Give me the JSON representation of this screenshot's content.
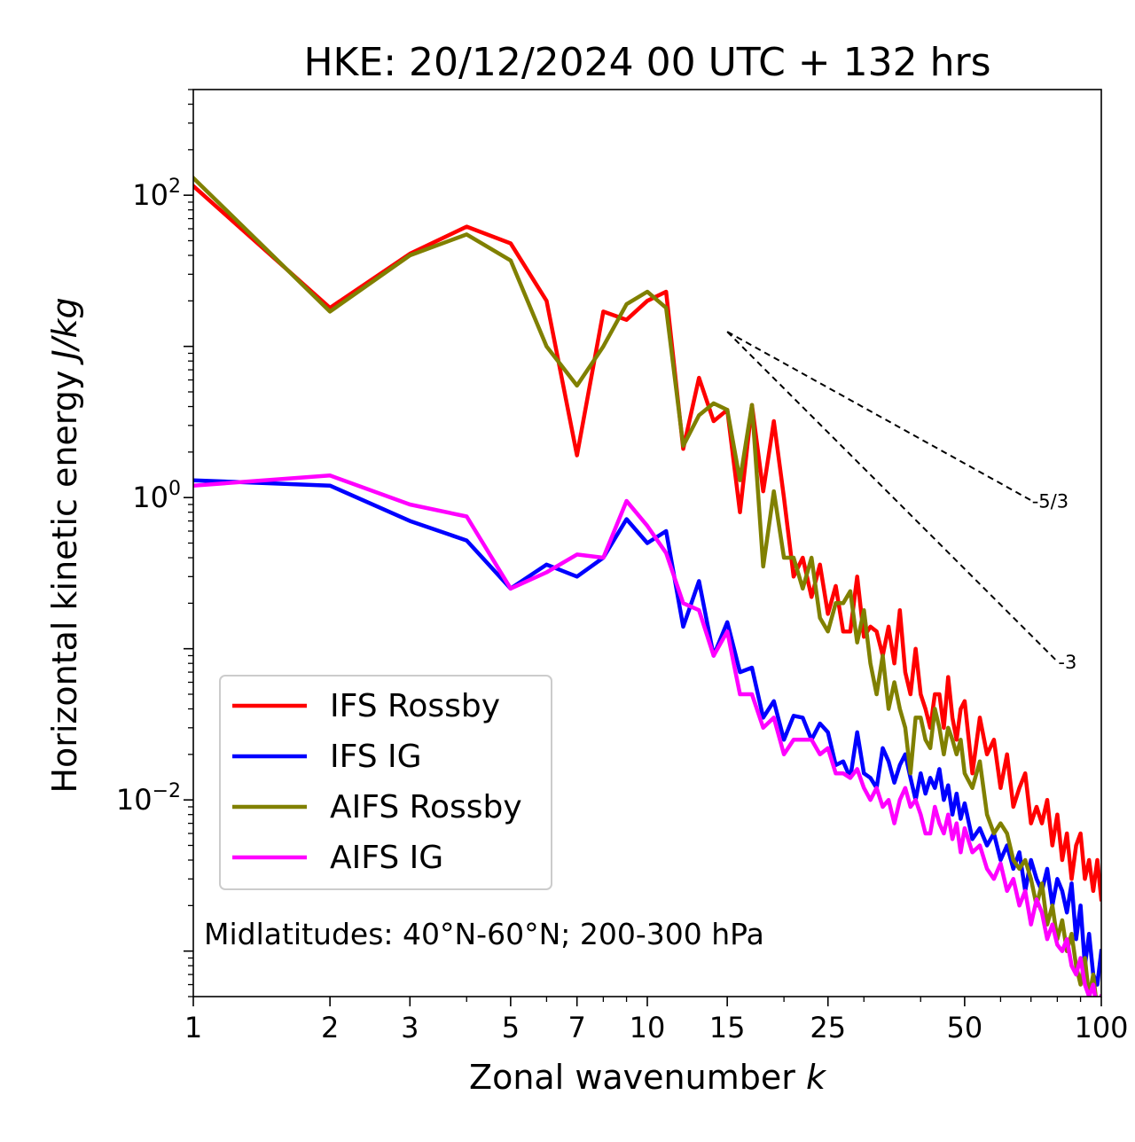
{
  "chart_data": {
    "type": "line",
    "title": "HKE: 20/12/2024 00 UTC + 132 hrs",
    "xlabel": "Zonal wavenumber k",
    "xlabel_text": "Zonal wavenumber ",
    "xlabel_var": "k",
    "ylabel": "Horizontal kinetic energy J/kg",
    "ylabel_text": "Horizontal kinetic energy ",
    "ylabel_units": "J/kg",
    "xscale": "log",
    "yscale": "log",
    "xlim": [
      1,
      100
    ],
    "ylim": [
      0.0005,
      500
    ],
    "xticks": [
      1,
      2,
      3,
      5,
      7,
      10,
      15,
      25,
      50,
      100
    ],
    "xtick_labels": [
      "1",
      "2",
      "3",
      "5",
      "7",
      "10",
      "15",
      "25",
      "50",
      "100"
    ],
    "yticks": [
      {
        "value": 100,
        "base": "10",
        "exp": "2"
      },
      {
        "value": 1,
        "base": "10",
        "exp": "0"
      },
      {
        "value": 0.01,
        "base": "10",
        "exp": "−2"
      }
    ],
    "grid": false,
    "legend_position": "lower-left",
    "annotation": "Midlatitudes: 40°N-60°N; 200-300 hPa",
    "reference_slopes": [
      {
        "label": "-5/3",
        "slope": -1.6667,
        "x": [
          15,
          70
        ],
        "y0": 12.5
      },
      {
        "label": "-3",
        "slope": -3,
        "x": [
          15,
          80
        ],
        "y0": 12.5
      }
    ],
    "series": [
      {
        "name": "IFS Rossby",
        "color": "#ff0000",
        "x": [
          1,
          2,
          3,
          4,
          5,
          6,
          7,
          8,
          9,
          10,
          11,
          12,
          13,
          14,
          15,
          16,
          17,
          18,
          19,
          20,
          21,
          22,
          23,
          24,
          25,
          26,
          27,
          28,
          29,
          30,
          31,
          32,
          33,
          34,
          35,
          36,
          37,
          38,
          39,
          40,
          41,
          42,
          43,
          44,
          45,
          46,
          47,
          48,
          49,
          50,
          52,
          54,
          56,
          58,
          60,
          62,
          64,
          66,
          68,
          70,
          72,
          74,
          76,
          78,
          80,
          82,
          84,
          86,
          88,
          90,
          92,
          94,
          96,
          98,
          100
        ],
        "values": [
          115,
          18,
          41,
          62,
          48,
          20,
          1.9,
          17,
          15,
          20,
          23,
          2.1,
          6.2,
          3.2,
          3.8,
          0.8,
          4.1,
          1.1,
          3.2,
          1.0,
          0.3,
          0.4,
          0.22,
          0.36,
          0.17,
          0.26,
          0.13,
          0.13,
          0.3,
          0.12,
          0.14,
          0.13,
          0.09,
          0.14,
          0.08,
          0.18,
          0.07,
          0.05,
          0.1,
          0.05,
          0.04,
          0.03,
          0.05,
          0.05,
          0.03,
          0.065,
          0.035,
          0.025,
          0.04,
          0.045,
          0.015,
          0.035,
          0.02,
          0.025,
          0.012,
          0.02,
          0.009,
          0.012,
          0.015,
          0.007,
          0.009,
          0.007,
          0.01,
          0.005,
          0.008,
          0.004,
          0.006,
          0.003,
          0.005,
          0.006,
          0.003,
          0.004,
          0.0025,
          0.004,
          0.0022
        ]
      },
      {
        "name": "IFS IG",
        "color": "#0000ff",
        "x": [
          1,
          2,
          3,
          4,
          5,
          6,
          7,
          8,
          9,
          10,
          11,
          12,
          13,
          14,
          15,
          16,
          17,
          18,
          19,
          20,
          21,
          22,
          23,
          24,
          25,
          26,
          27,
          28,
          29,
          30,
          31,
          32,
          33,
          34,
          35,
          36,
          37,
          38,
          39,
          40,
          41,
          42,
          43,
          44,
          45,
          46,
          47,
          48,
          49,
          50,
          52,
          54,
          56,
          58,
          60,
          62,
          64,
          66,
          68,
          70,
          72,
          74,
          76,
          78,
          80,
          82,
          84,
          86,
          88,
          90,
          92,
          94,
          96,
          98,
          100
        ],
        "values": [
          1.3,
          1.2,
          0.7,
          0.52,
          0.25,
          0.36,
          0.3,
          0.4,
          0.72,
          0.5,
          0.6,
          0.14,
          0.28,
          0.09,
          0.15,
          0.07,
          0.075,
          0.035,
          0.045,
          0.025,
          0.036,
          0.035,
          0.025,
          0.032,
          0.028,
          0.017,
          0.018,
          0.014,
          0.028,
          0.015,
          0.014,
          0.012,
          0.022,
          0.018,
          0.013,
          0.017,
          0.02,
          0.014,
          0.01,
          0.015,
          0.011,
          0.014,
          0.012,
          0.016,
          0.01,
          0.0125,
          0.008,
          0.011,
          0.0075,
          0.0095,
          0.0055,
          0.0065,
          0.005,
          0.006,
          0.004,
          0.005,
          0.0035,
          0.0045,
          0.0025,
          0.004,
          0.003,
          0.0025,
          0.0035,
          0.002,
          0.003,
          0.0025,
          0.0018,
          0.0028,
          0.0012,
          0.002,
          0.0008,
          0.0013,
          0.0007,
          0.0006,
          0.001
        ]
      },
      {
        "name": "AIFS Rossby",
        "color": "#808000",
        "x": [
          1,
          2,
          3,
          4,
          5,
          6,
          7,
          8,
          9,
          10,
          11,
          12,
          13,
          14,
          15,
          16,
          17,
          18,
          19,
          20,
          21,
          22,
          23,
          24,
          25,
          26,
          27,
          28,
          29,
          30,
          31,
          32,
          33,
          34,
          35,
          36,
          37,
          38,
          39,
          40,
          41,
          42,
          43,
          44,
          45,
          46,
          47,
          48,
          49,
          50,
          52,
          54,
          56,
          58,
          60,
          62,
          64,
          66,
          68,
          70,
          72,
          74,
          76,
          78,
          80,
          82,
          84,
          86,
          88,
          90,
          92,
          94,
          96,
          98,
          100
        ],
        "values": [
          130,
          17,
          40,
          55,
          37,
          10,
          5.5,
          10,
          19,
          23,
          18,
          2.2,
          3.5,
          4.2,
          3.8,
          1.3,
          4.1,
          0.35,
          1.1,
          0.4,
          0.4,
          0.25,
          0.4,
          0.16,
          0.13,
          0.2,
          0.2,
          0.24,
          0.11,
          0.18,
          0.08,
          0.05,
          0.09,
          0.04,
          0.06,
          0.04,
          0.03,
          0.015,
          0.035,
          0.035,
          0.025,
          0.022,
          0.04,
          0.03,
          0.02,
          0.03,
          0.025,
          0.02,
          0.025,
          0.015,
          0.012,
          0.018,
          0.008,
          0.006,
          0.007,
          0.006,
          0.004,
          0.0035,
          0.004,
          0.003,
          0.002,
          0.0028,
          0.0015,
          0.002,
          0.0012,
          0.0016,
          0.001,
          0.0013,
          0.0008,
          0.0006,
          0.0009,
          0.0005,
          0.0007,
          0.0004,
          0.0005
        ]
      },
      {
        "name": "AIFS IG",
        "color": "#ff00ff",
        "x": [
          1,
          2,
          3,
          4,
          5,
          6,
          7,
          8,
          9,
          10,
          11,
          12,
          13,
          14,
          15,
          16,
          17,
          18,
          19,
          20,
          21,
          22,
          23,
          24,
          25,
          26,
          27,
          28,
          29,
          30,
          31,
          32,
          33,
          34,
          35,
          36,
          37,
          38,
          39,
          40,
          41,
          42,
          43,
          44,
          45,
          46,
          47,
          48,
          49,
          50,
          52,
          54,
          56,
          58,
          60,
          62,
          64,
          66,
          68,
          70,
          72,
          74,
          76,
          78,
          80,
          82,
          84,
          86,
          88,
          90,
          92,
          94,
          96,
          98,
          100
        ],
        "values": [
          1.2,
          1.4,
          0.9,
          0.75,
          0.25,
          0.32,
          0.42,
          0.4,
          0.95,
          0.65,
          0.43,
          0.2,
          0.18,
          0.09,
          0.13,
          0.05,
          0.05,
          0.03,
          0.035,
          0.02,
          0.025,
          0.025,
          0.025,
          0.02,
          0.022,
          0.015,
          0.015,
          0.014,
          0.016,
          0.012,
          0.01,
          0.012,
          0.009,
          0.01,
          0.007,
          0.01,
          0.012,
          0.009,
          0.01,
          0.008,
          0.006,
          0.006,
          0.009,
          0.007,
          0.006,
          0.008,
          0.0055,
          0.007,
          0.0045,
          0.0065,
          0.0045,
          0.005,
          0.0035,
          0.003,
          0.0038,
          0.0025,
          0.003,
          0.002,
          0.0025,
          0.0015,
          0.0022,
          0.0018,
          0.0012,
          0.0015,
          0.0011,
          0.001,
          0.0012,
          0.0008,
          0.0007,
          0.0009,
          0.0006,
          0.0005,
          0.0006,
          0.0004,
          0.0005
        ]
      }
    ]
  }
}
